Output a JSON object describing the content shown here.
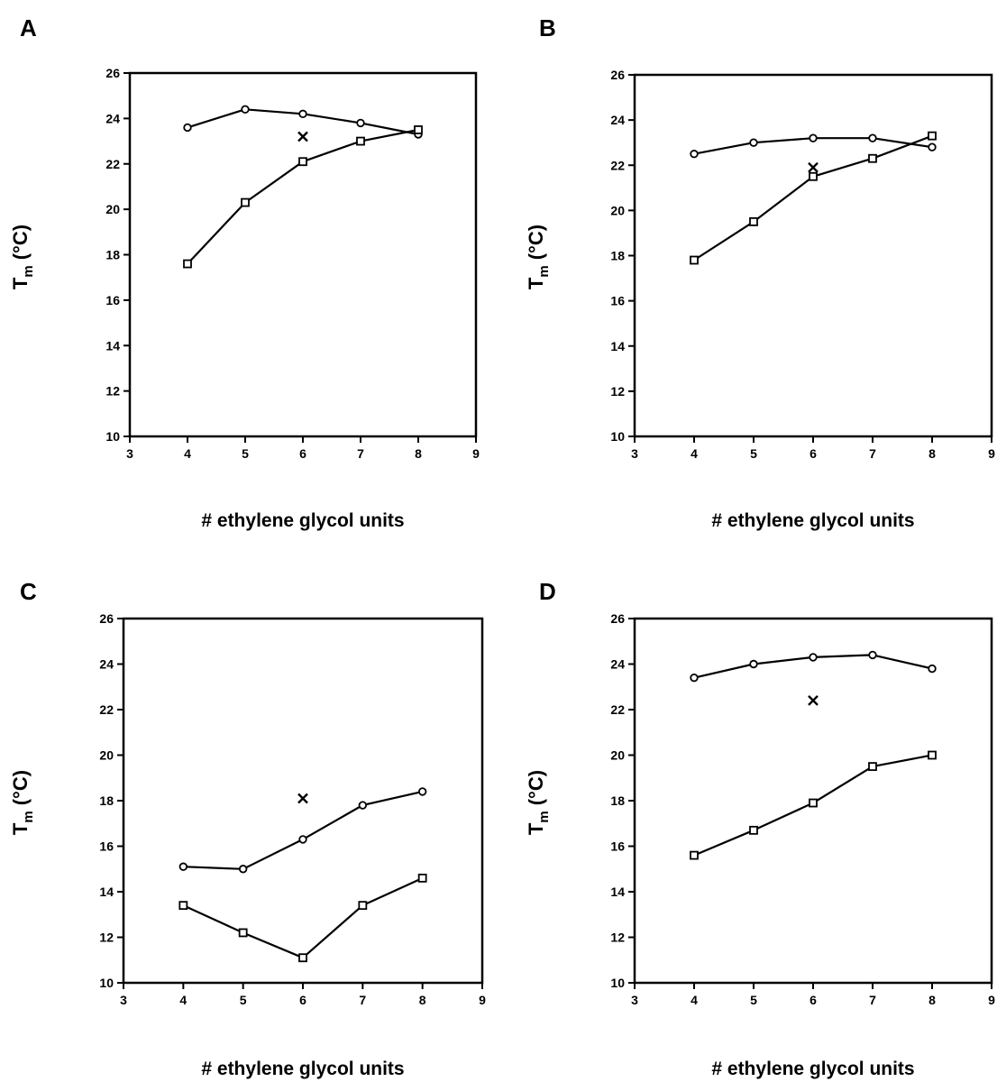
{
  "chart_data": [
    {
      "panel_label": "A",
      "type": "line",
      "xlabel": "# ethylene glycol units",
      "ylabel": {
        "main": "T",
        "sub": "m",
        "unit": "(°C)"
      },
      "xlim": [
        3,
        9
      ],
      "ylim": [
        10,
        26
      ],
      "xticks": [
        "3",
        "4",
        "5",
        "6",
        "7",
        "8",
        "9"
      ],
      "yticks": [
        "10",
        "12",
        "14",
        "16",
        "18",
        "20",
        "22",
        "24",
        "26"
      ],
      "grid": false,
      "series": [
        {
          "marker": "circle",
          "x": [
            4,
            5,
            6,
            7,
            8
          ],
          "y": [
            23.6,
            24.4,
            24.2,
            23.8,
            23.3
          ]
        },
        {
          "marker": "square",
          "x": [
            4,
            5,
            6,
            7,
            8
          ],
          "y": [
            17.6,
            20.3,
            22.1,
            23.0,
            23.5
          ]
        }
      ],
      "extra_points": [
        {
          "marker": "x",
          "x": 6,
          "y": 23.2
        }
      ]
    },
    {
      "panel_label": "B",
      "type": "line",
      "xlabel": "# ethylene glycol units",
      "ylabel": {
        "main": "T",
        "sub": "m",
        "unit": "(°C)"
      },
      "xlim": [
        3,
        9
      ],
      "ylim": [
        10,
        26
      ],
      "xticks": [
        "3",
        "4",
        "5",
        "6",
        "7",
        "8",
        "9"
      ],
      "yticks": [
        "10",
        "12",
        "14",
        "16",
        "18",
        "20",
        "22",
        "24",
        "26"
      ],
      "grid": false,
      "series": [
        {
          "marker": "circle",
          "x": [
            4,
            5,
            6,
            7,
            8
          ],
          "y": [
            22.5,
            23.0,
            23.2,
            23.2,
            22.8
          ]
        },
        {
          "marker": "square",
          "x": [
            4,
            5,
            6,
            7,
            8
          ],
          "y": [
            17.8,
            19.5,
            21.5,
            22.3,
            23.3
          ]
        }
      ],
      "extra_points": [
        {
          "marker": "x",
          "x": 6,
          "y": 21.9
        }
      ]
    },
    {
      "panel_label": "C",
      "type": "line",
      "xlabel": "# ethylene glycol units",
      "ylabel": {
        "main": "T",
        "sub": "m",
        "unit": "(°C)"
      },
      "xlim": [
        3,
        9
      ],
      "ylim": [
        10,
        26
      ],
      "xticks": [
        "3",
        "4",
        "5",
        "6",
        "7",
        "8",
        "9"
      ],
      "yticks": [
        "10",
        "12",
        "14",
        "16",
        "18",
        "20",
        "22",
        "24",
        "26"
      ],
      "grid": false,
      "series": [
        {
          "marker": "circle",
          "x": [
            4,
            5,
            6,
            7,
            8
          ],
          "y": [
            15.1,
            15.0,
            16.3,
            17.8,
            18.4
          ]
        },
        {
          "marker": "square",
          "x": [
            4,
            5,
            6,
            7,
            8
          ],
          "y": [
            13.4,
            12.2,
            11.1,
            13.4,
            14.6
          ]
        }
      ],
      "extra_points": [
        {
          "marker": "x",
          "x": 6,
          "y": 18.1
        }
      ]
    },
    {
      "panel_label": "D",
      "type": "line",
      "xlabel": "# ethylene glycol units",
      "ylabel": {
        "main": "T",
        "sub": "m",
        "unit": "(°C)"
      },
      "xlim": [
        3,
        9
      ],
      "ylim": [
        10,
        26
      ],
      "xticks": [
        "3",
        "4",
        "5",
        "6",
        "7",
        "8",
        "9"
      ],
      "yticks": [
        "10",
        "12",
        "14",
        "16",
        "18",
        "20",
        "22",
        "24",
        "26"
      ],
      "grid": false,
      "series": [
        {
          "marker": "circle",
          "x": [
            4,
            5,
            6,
            7,
            8
          ],
          "y": [
            23.4,
            24.0,
            24.3,
            24.4,
            23.8
          ]
        },
        {
          "marker": "square",
          "x": [
            4,
            5,
            6,
            7,
            8
          ],
          "y": [
            15.6,
            16.7,
            17.9,
            19.5,
            20.0
          ]
        }
      ],
      "extra_points": [
        {
          "marker": "x",
          "x": 6,
          "y": 22.4
        }
      ]
    }
  ]
}
